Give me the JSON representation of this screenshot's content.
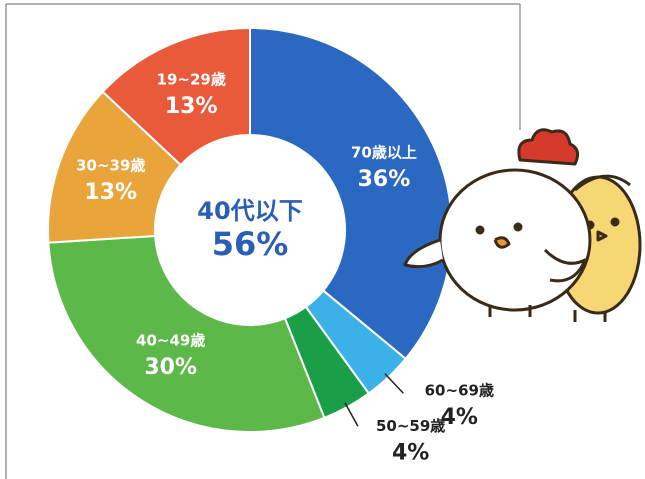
{
  "chart_data": {
    "type": "donut",
    "categories": [
      "70歳以上",
      "60~69歳",
      "50~59歳",
      "40~49歳",
      "30~39歳",
      "19~29歳"
    ],
    "values": [
      36,
      4,
      4,
      30,
      13,
      13
    ],
    "value_labels": [
      "36%",
      "4%",
      "4%",
      "30%",
      "13%",
      "13%"
    ],
    "colors": [
      "#2b68c2",
      "#3cb1e8",
      "#1a9e48",
      "#5cb848",
      "#e9a43b",
      "#e95a3b"
    ],
    "center_label": "40代以下",
    "center_value": 56,
    "center_value_label": "56%"
  }
}
